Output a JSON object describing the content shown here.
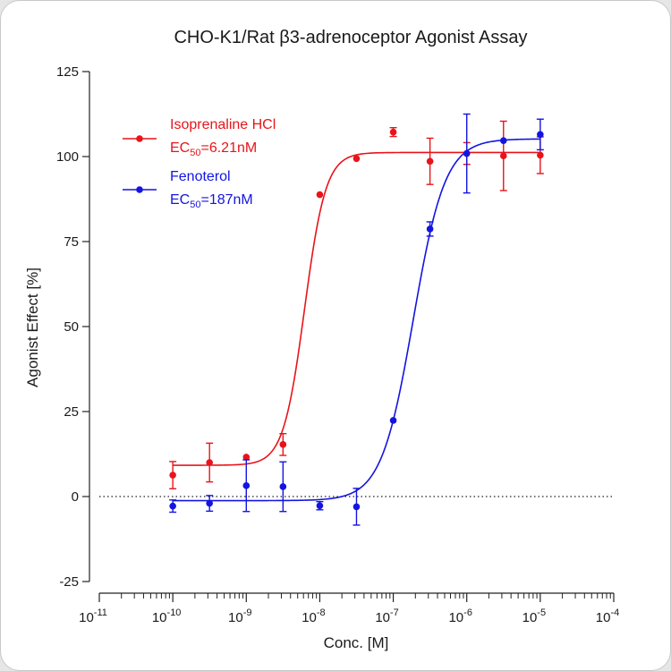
{
  "chart_data": {
    "type": "scatter",
    "title": "CHO-K1/Rat β3-adrenoceptor Agonist Assay",
    "xlabel": "Conc. [M]",
    "ylabel": "Agonist Effect [%]",
    "x_scale": "log",
    "xlim": [
      1e-11,
      0.0001
    ],
    "ylim": [
      -25,
      125
    ],
    "x_ticks": [
      {
        "base": "10",
        "exp": "-11"
      },
      {
        "base": "10",
        "exp": "-10"
      },
      {
        "base": "10",
        "exp": "-9"
      },
      {
        "base": "10",
        "exp": "-8"
      },
      {
        "base": "10",
        "exp": "-7"
      },
      {
        "base": "10",
        "exp": "-6"
      },
      {
        "base": "10",
        "exp": "-5"
      },
      {
        "base": "10",
        "exp": "-4"
      }
    ],
    "y_ticks": [
      "125",
      "100",
      "75",
      "50",
      "25",
      "0",
      "-25"
    ],
    "y_tick_values": [
      125,
      100,
      75,
      50,
      25,
      0,
      -25
    ],
    "baseline": 0,
    "legend_position": "top-left",
    "series": [
      {
        "name": "Isoprenaline HCl",
        "ec50_label": {
          "prefix": "EC",
          "sub": "50",
          "suffix": "=6.21nM"
        },
        "color": "#e8141a",
        "x": [
          1e-10,
          3.16e-10,
          1e-09,
          3.16e-09,
          1e-08,
          3.16e-08,
          1e-07,
          3.16e-07,
          1e-06,
          3.16e-06,
          1e-05
        ],
        "y": [
          6.3,
          10.0,
          11.6,
          15.3,
          88.8,
          99.4,
          107.2,
          98.6,
          100.9,
          100.2,
          100.4
        ],
        "err": [
          4.0,
          5.7,
          0,
          3.2,
          0,
          0,
          1.3,
          6.8,
          3.2,
          10.2,
          5.4
        ],
        "fit": {
          "bottom": 9.2,
          "top": 101.2,
          "ec50": 6.21e-09,
          "hill": 3.0
        }
      },
      {
        "name": "Fenoterol",
        "ec50_label": {
          "prefix": "EC",
          "sub": "50",
          "suffix": "=187nM"
        },
        "color": "#1414e0",
        "x": [
          1e-10,
          3.16e-10,
          1e-09,
          3.16e-09,
          1e-08,
          3.16e-08,
          1e-07,
          3.16e-07,
          1e-06,
          3.16e-06,
          1e-05
        ],
        "y": [
          -2.8,
          -2.0,
          3.2,
          2.9,
          -2.7,
          -3.0,
          22.4,
          78.7,
          100.9,
          104.7,
          106.5
        ],
        "err": [
          1.8,
          2.3,
          7.6,
          7.3,
          1.2,
          5.4,
          0,
          2.1,
          11.6,
          0,
          4.5
        ],
        "fit": {
          "bottom": -1.2,
          "top": 105.2,
          "ec50": 1.87e-07,
          "hill": 2.0
        }
      }
    ]
  }
}
